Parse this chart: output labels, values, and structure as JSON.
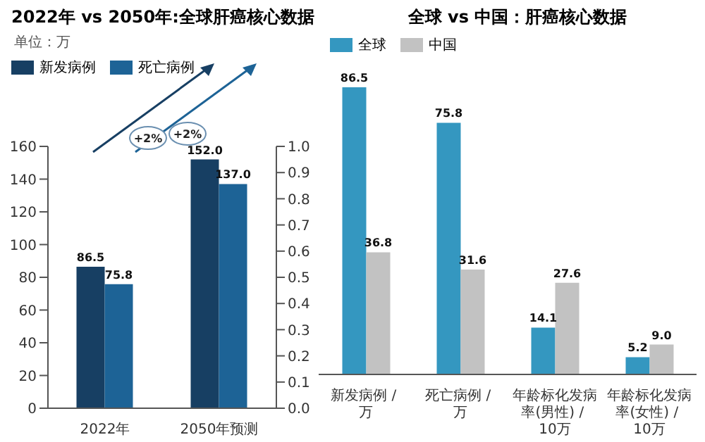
{
  "chart_data": [
    {
      "type": "bar",
      "title": "2022年 vs 2050年:全球肝癌核心数据",
      "subtitle": "单位：万",
      "categories": [
        "2022年",
        "2050年预测"
      ],
      "series": [
        {
          "name": "新发病例",
          "color": "#173f63",
          "values": [
            86.5,
            152.0
          ],
          "value_labels": [
            "86.5",
            "152.0"
          ]
        },
        {
          "name": "死亡病例",
          "color": "#1d6396",
          "values": [
            75.8,
            137.0
          ],
          "value_labels": [
            "75.8",
            "137.0"
          ]
        }
      ],
      "ylim": [
        0,
        160
      ],
      "yticks": [
        0,
        20,
        40,
        60,
        80,
        100,
        120,
        140,
        160
      ],
      "y2lim": [
        0,
        1.0
      ],
      "y2ticks": [
        {
          "value": 0,
          "label": "0.0"
        },
        0.1,
        0.2,
        0.3,
        0.4,
        0.5,
        0.6,
        0.7,
        0.8,
        0.9,
        {
          "value": 1,
          "label": "1.0"
        }
      ],
      "annotations": [
        "+2%",
        "+2%"
      ],
      "legend": "top left",
      "grid": false
    },
    {
      "type": "bar",
      "title": "全球 vs 中国：肝癌核心数据",
      "categories": [
        "新发病例 / 万",
        "死亡病例 / 万",
        "年龄标化发病率(男性) / 10万",
        "年龄标化发病率(女性) / 10万"
      ],
      "series": [
        {
          "name": "全球",
          "color": "#3497c0",
          "values": [
            86.5,
            75.8,
            14.1,
            5.2
          ],
          "value_labels": [
            "86.5",
            "75.8",
            "14.1",
            "5.2"
          ]
        },
        {
          "name": "中国",
          "color": "#c2c2c2",
          "values": [
            36.8,
            31.6,
            27.6,
            9.0
          ],
          "value_labels": [
            "36.8",
            "31.6",
            "27.6",
            "9.0"
          ]
        }
      ],
      "legend": "top left",
      "grid": false
    }
  ]
}
